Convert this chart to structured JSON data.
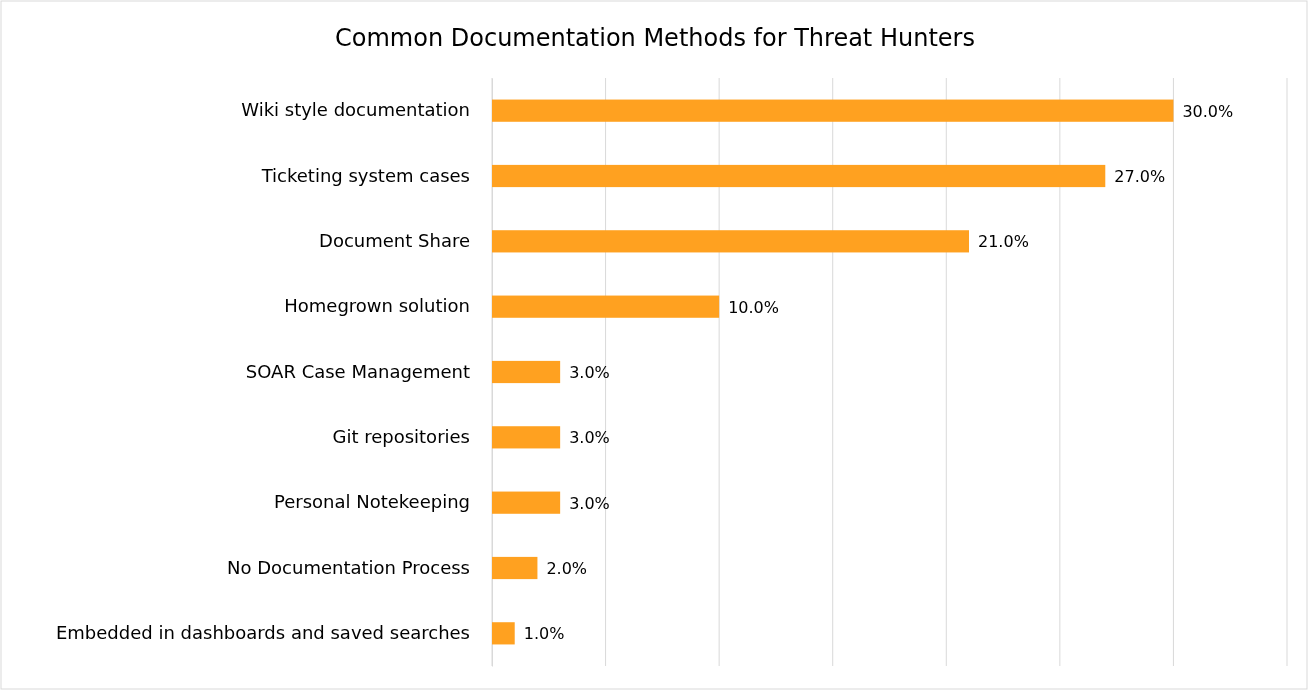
{
  "chart_data": {
    "type": "bar",
    "orientation": "horizontal",
    "title": "Common Documentation Methods for Threat Hunters",
    "categories": [
      "Wiki style documentation",
      "Ticketing system cases",
      "Document Share",
      "Homegrown solution",
      "SOAR Case Management",
      "Git repositories",
      "Personal Notekeeping",
      "No Documentation Process",
      "Embedded in dashboards and saved searches"
    ],
    "values": [
      30,
      27,
      21,
      10,
      3,
      3,
      3,
      2,
      1
    ],
    "value_labels": [
      "30.0%",
      "27.0%",
      "21.0%",
      "10.0%",
      "3.0%",
      "3.0%",
      "3.0%",
      "2.0%",
      "1.0%"
    ],
    "color": "#ffa120",
    "xlim": [
      0,
      35
    ],
    "xticks": [
      {
        "value": 0,
        "label": null
      },
      {
        "value": 5,
        "label": null
      },
      {
        "value": 10,
        "label": null
      },
      {
        "value": 15,
        "label": null
      },
      {
        "value": 20,
        "label": null
      },
      {
        "value": 25,
        "label": null
      },
      {
        "value": 30,
        "label": null
      },
      {
        "value": 35,
        "label": null
      }
    ],
    "grid": "x",
    "tick_labels": "y"
  }
}
